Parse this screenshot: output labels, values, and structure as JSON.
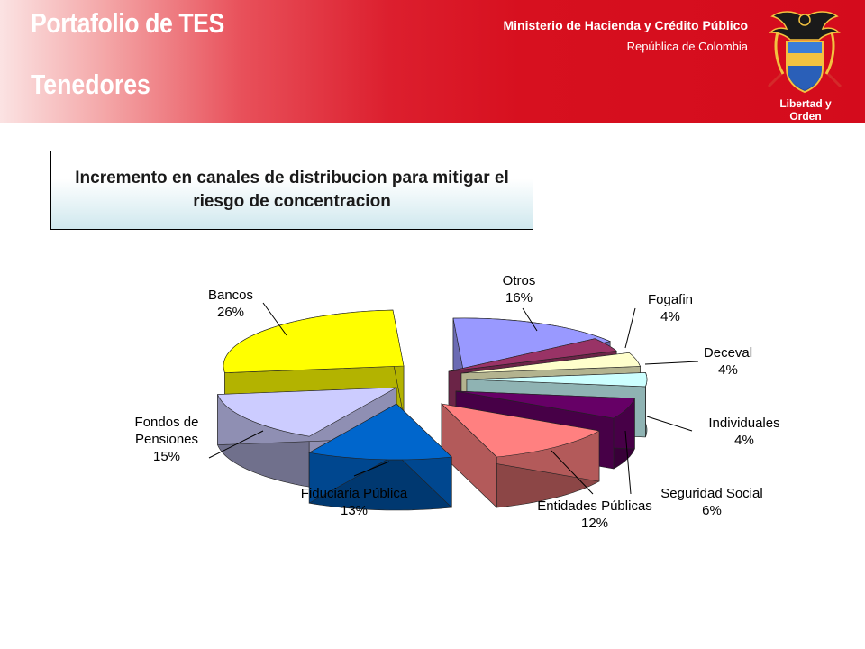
{
  "header": {
    "title": "Portafolio de TES",
    "subtitle": "Tenedores",
    "ministry": "Ministerio de Hacienda y Crédito Público",
    "country": "República de Colombia",
    "motto": "Libertad y Orden"
  },
  "banner": {
    "text": "Incremento en canales de  distribucion para mitigar el riesgo de concentracion"
  },
  "chart_data": {
    "type": "pie",
    "style": "3d-exploded",
    "title": "",
    "series": [
      {
        "values": [
          16,
          4,
          4,
          4,
          6,
          12,
          13,
          15,
          26
        ]
      }
    ],
    "categories": [
      "Otros",
      "Fogafin",
      "Deceval",
      "Individuales",
      "Seguridad Social",
      "Entidades Públicas",
      "Fiduciaria Pública",
      "Fondos de Pensiones",
      "Bancos"
    ],
    "slices": [
      {
        "name": "Otros",
        "label_lines": [
          "Otros"
        ],
        "percent_label": "16%",
        "value": 16,
        "color": "#9999ff"
      },
      {
        "name": "Fogafin",
        "label_lines": [
          "Fogafin"
        ],
        "percent_label": "4%",
        "value": 4,
        "color": "#993366"
      },
      {
        "name": "Deceval",
        "label_lines": [
          "Deceval"
        ],
        "percent_label": "4%",
        "value": 4,
        "color": "#ffffcc"
      },
      {
        "name": "Individuales",
        "label_lines": [
          "Individuales"
        ],
        "percent_label": "4%",
        "value": 4,
        "color": "#ccffff"
      },
      {
        "name": "Seguridad Social",
        "label_lines": [
          "Seguridad Social"
        ],
        "percent_label": "6%",
        "value": 6,
        "color": "#660066"
      },
      {
        "name": "Entidades Públicas",
        "label_lines": [
          "Entidades Públicas"
        ],
        "percent_label": "12%",
        "value": 12,
        "color": "#ff8080"
      },
      {
        "name": "Fiduciaria Pública",
        "label_lines": [
          "Fiduciaria Pública"
        ],
        "percent_label": "13%",
        "value": 13,
        "color": "#0066cc"
      },
      {
        "name": "Fondos de Pensiones",
        "label_lines": [
          "Fondos de",
          "Pensiones"
        ],
        "percent_label": "15%",
        "value": 15,
        "color": "#ccccff"
      },
      {
        "name": "Bancos",
        "label_lines": [
          "Bancos"
        ],
        "percent_label": "26%",
        "value": 26,
        "color": "#ffff00"
      }
    ]
  }
}
